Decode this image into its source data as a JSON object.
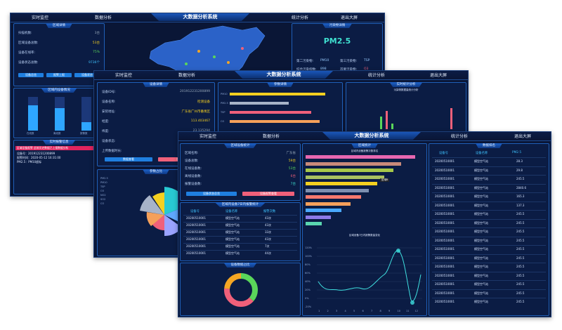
{
  "nav": {
    "realtime": "实时监控",
    "data_analysis": "数据分析",
    "title": "大数据分析系统",
    "stats": "统计分析",
    "exit": "退出大屏"
  },
  "screen1": {
    "device_panel_title": "区域详情",
    "device_rows": [
      {
        "label": "扫描机数:",
        "value": "3台"
      },
      {
        "label": "区域设备总数:",
        "value": "53台"
      },
      {
        "label": "设备在线率:",
        "value": "75%"
      },
      {
        "label": "设备状态总数:",
        "value": "9736个"
      }
    ],
    "buttons": [
      "设备总览",
      "报警上报",
      "设备状态"
    ],
    "pm_title": "污染物详情",
    "pm_label": "PM2.5",
    "pm_rows": [
      {
        "label": "第二污染物:",
        "value": "PM10"
      },
      {
        "label": "第三污染物:",
        "value": "TSP"
      },
      {
        "label": "综合污染指数:",
        "value": "898"
      },
      {
        "label": "首要污染物:",
        "value": "O3"
      }
    ],
    "bar_title": "区域内设备情况",
    "bar_labels": [
      "在线数",
      "离线数",
      "报警数"
    ],
    "alarm_title": "实时报警信息",
    "alarm_highlight": "区域设备报警 此前历史数据已上报数据分析",
    "alarm_lines": [
      "设备号：201912231200899",
      "报警时间：2020-05-12 16:31:00",
      "PM2.5：PM10超标"
    ]
  },
  "screen2": {
    "detail_title": "设备详情",
    "rows": [
      {
        "label": "设备ID号:",
        "value": "201912231200899"
      },
      {
        "label": "设备名称:",
        "value": "检测设备"
      },
      {
        "label": "安装地址:",
        "value": "广东省广州市番禺区"
      },
      {
        "label": "经度:",
        "value": "113.403467"
      },
      {
        "label": "纬度:",
        "value": "23.135294"
      },
      {
        "label": "设备状态:",
        "value": "在线"
      },
      {
        "label": "上传数据时长:",
        "value": ""
      }
    ],
    "buttons": [
      "数据查看",
      "设备控制"
    ],
    "params_title": "参数详情",
    "params_labels": [
      "PM10",
      "PM2.5",
      "TSP",
      "O3"
    ],
    "params_values": [
      68,
      42,
      58,
      64
    ],
    "trend_title": "实时统计分析",
    "trend_subtitle": "污染物数据量统计分析",
    "ratio_title": "参数占比",
    "legend": [
      "PM2.5",
      "PM10",
      "TSP",
      "O3",
      "NO2",
      "SO2",
      "CO"
    ]
  },
  "screen3": {
    "device_panel_title": "区域设备统计",
    "rows": [
      {
        "label": "区域名称:",
        "value": "广东省"
      },
      {
        "label": "设备总数:",
        "value": "59台"
      },
      {
        "label": "在线设备数:",
        "value": "53台"
      },
      {
        "label": "离线设备数:",
        "value": "6台"
      },
      {
        "label": "报警设备数:",
        "value": "7台"
      }
    ],
    "buttons": [
      "设备状态总览",
      "设备报警查看"
    ],
    "table_title": "区域内设备7日内报警统计",
    "table_headers": [
      "设备号",
      "设备名称",
      "报警次数"
    ],
    "table_rows": [
      [
        "20200510001",
        "模型空气站",
        "43次"
      ],
      [
        "20200510001",
        "模型空气站",
        "43次"
      ],
      [
        "20200510001",
        "模型空气站",
        "33次"
      ],
      [
        "20200510001",
        "模型空气站",
        "43次"
      ],
      [
        "20200510001",
        "模型空气站",
        "7次"
      ],
      [
        "20200510001",
        "模型空气站",
        "44次"
      ]
    ],
    "donut_title": "设备数据占比",
    "middle_title": "区域统计",
    "hbar_subtitle": "区域内设备报警次数排名",
    "hbar_values": [
      95,
      83,
      76,
      68,
      62,
      55,
      48,
      39,
      31,
      22,
      14
    ],
    "hbar_tooltip": "区域6",
    "line_subtitle": "区域设备7日内报警数量变化",
    "line_yticks": [
      "120%",
      "100%",
      "80%",
      "60%",
      "40%",
      "20%",
      "0%",
      "-20%"
    ],
    "line_xticks": [
      "1",
      "2",
      "3",
      "4",
      "5",
      "6",
      "7",
      "8",
      "9",
      "10",
      "11",
      "12"
    ],
    "ranking_title": "数据排名",
    "ranking_headers": [
      "设备号",
      "设备名称",
      "PM2.5"
    ],
    "ranking_rows": [
      [
        "20200510001",
        "模型空气站",
        "28.3"
      ],
      [
        "20200510001",
        "模型空气站",
        "29.8"
      ],
      [
        "20200510001",
        "模型空气站",
        "245.5"
      ],
      [
        "20200510001",
        "模型空气站",
        "2840.6"
      ],
      [
        "20200510001",
        "模型空气站",
        "165.3"
      ],
      [
        "20200510001",
        "模型空气站",
        "137.3"
      ],
      [
        "20200510001",
        "模型空气站",
        "245.5"
      ],
      [
        "20200510001",
        "模型空气站",
        "245.5"
      ],
      [
        "20200510001",
        "模型空气站",
        "245.5"
      ],
      [
        "20200510001",
        "模型空气站",
        "245.5"
      ],
      [
        "20200510001",
        "模型空气站",
        "245.5"
      ],
      [
        "20200510001",
        "模型空气站",
        "245.5"
      ],
      [
        "20200510001",
        "模型空气站",
        "245.5"
      ],
      [
        "20200510001",
        "模型空气站",
        "245.5"
      ],
      [
        "20200510001",
        "模型空气站",
        "245.5"
      ],
      [
        "20200510001",
        "模型空气站",
        "245.5"
      ],
      [
        "20200510001",
        "模型空气站",
        "245.5"
      ]
    ]
  },
  "colors": {
    "accent": "#1fa2ff",
    "pink": "#f0607a",
    "yellow": "#f5d020",
    "green": "#5ad65a",
    "bg": "#0a1636"
  }
}
